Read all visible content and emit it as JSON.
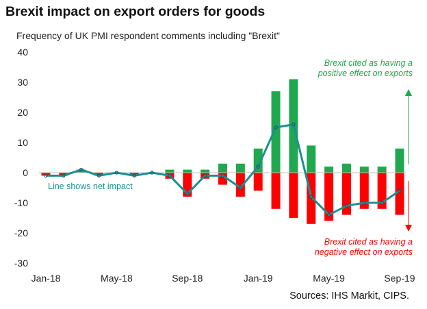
{
  "chart_data": {
    "type": "bar",
    "title": "Brexit impact on export orders for goods",
    "subtitle": "Frequency of UK PMI respondent comments including \"Brexit\"",
    "source": "Sources: IHS Markit, CIPS.",
    "categories": [
      "Jan-18",
      "Feb-18",
      "Mar-18",
      "Apr-18",
      "May-18",
      "Jun-18",
      "Jul-18",
      "Aug-18",
      "Sep-18",
      "Oct-18",
      "Nov-18",
      "Dec-18",
      "Jan-19",
      "Feb-19",
      "Mar-19",
      "Apr-19",
      "May-19",
      "Jun-19",
      "Jul-19",
      "Aug-19",
      "Sep-19"
    ],
    "x_tick_labels": [
      "Jan-18",
      "May-18",
      "Sep-18",
      "Jan-19",
      "May-19",
      "Sep-19"
    ],
    "y_tick_labels": [
      "40",
      "30",
      "20",
      "10",
      "0",
      "-10",
      "-20",
      "-30"
    ],
    "ylim": [
      -30,
      40
    ],
    "grid": false,
    "series": [
      {
        "values": [
          0,
          0,
          1,
          0,
          0,
          0,
          0,
          1,
          1,
          1,
          3,
          3,
          8,
          27,
          31,
          9,
          2,
          3,
          2,
          2,
          8
        ],
        "color": "#1fa84f",
        "kind": "bar"
      },
      {
        "values": [
          -1,
          -1,
          0,
          -1,
          0,
          -1,
          0,
          -2,
          -8,
          -2,
          -4,
          -8,
          -6,
          -12,
          -15,
          -17,
          -16,
          -14,
          -12,
          -12,
          -14
        ],
        "color": "#ff0000",
        "kind": "bar"
      },
      {
        "values": [
          -1,
          -1,
          1,
          -1,
          0,
          -1,
          0,
          -1,
          -7,
          -1,
          -1,
          -5,
          2,
          15,
          16,
          -8,
          -14,
          -11,
          -10,
          -10,
          -6
        ],
        "color": "#1a9090",
        "kind": "line"
      }
    ],
    "annotations": {
      "positive_line1": "Brexit cited as having a",
      "positive_line2": "positive effect on exports",
      "negative_line1": "Brexit cited as having a",
      "negative_line2": "negative effect on exports",
      "line_note": "Line shows net impact"
    }
  }
}
